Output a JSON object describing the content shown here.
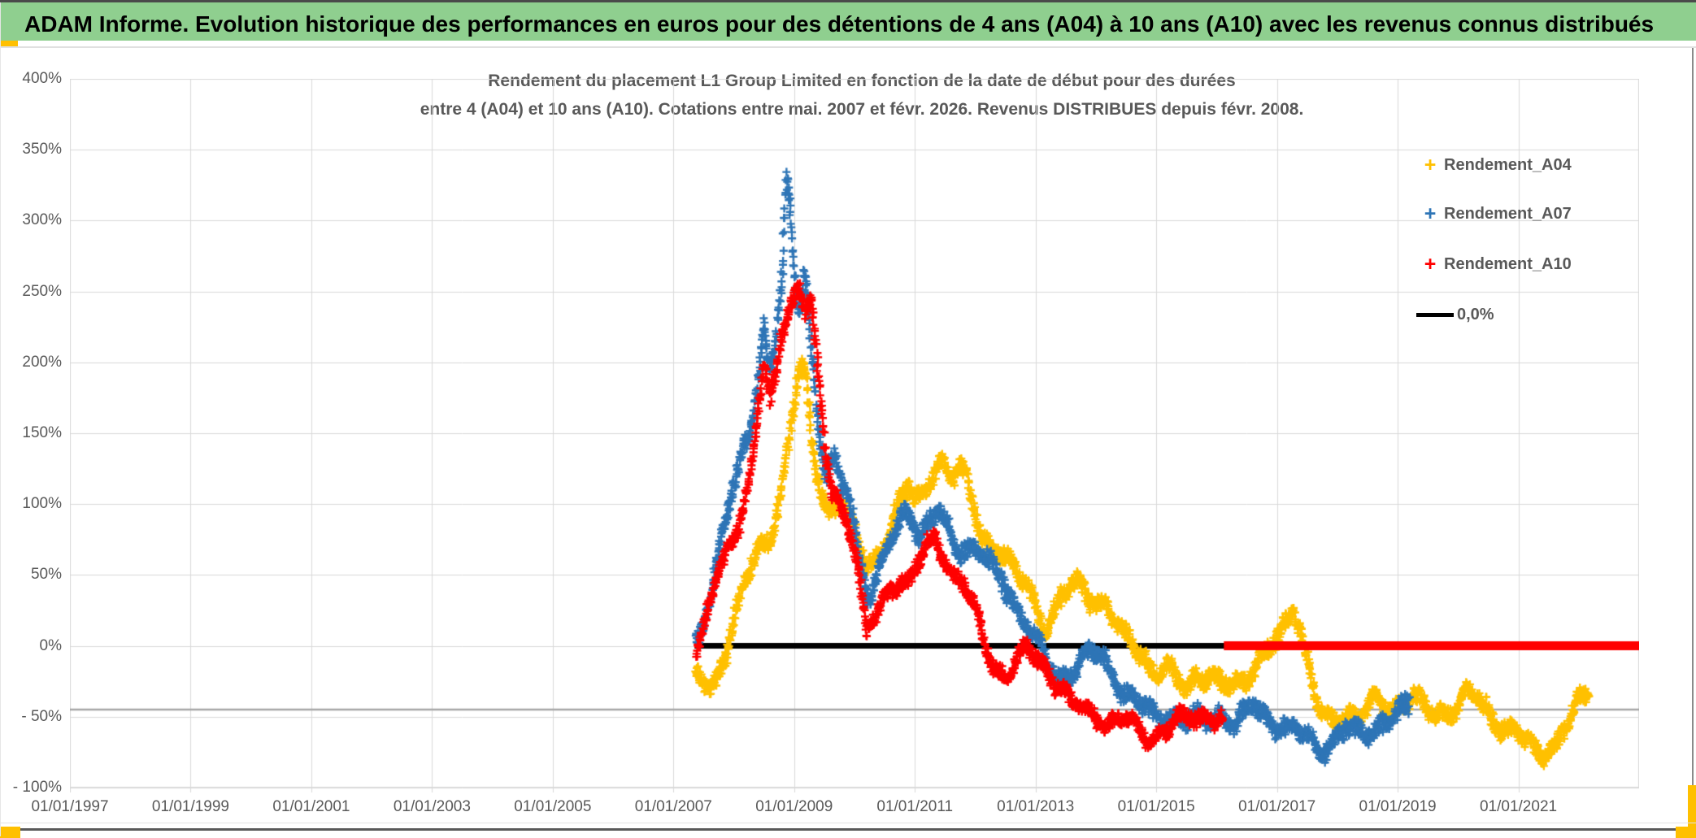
{
  "header": {
    "title": "ADAM Informe. Evolution historique des performances en euros pour des détentions de 4 ans (A04) à 10 ans (A10) avec les revenus connus distribués"
  },
  "chart_data": {
    "type": "scatter",
    "title_line1": "Rendement du placement L1 Group Limited en fonction de la date de début pour des durées",
    "title_line2": "entre 4 (A04) et 10 ans (A10). Cotations entre mai. 2007 et févr. 2026. Revenus DISTRIBUES depuis févr. 2008.",
    "grid": true,
    "grid_color": "#D9D9D9",
    "text_color": "#595959",
    "x_axis": {
      "start_year": 1997,
      "end_year": 2023,
      "tick_step_years": 2,
      "labels": [
        {
          "t": 1997,
          "text": "01/01/1997"
        },
        {
          "t": 1999,
          "text": "01/01/1999"
        },
        {
          "t": 2001,
          "text": "01/01/2001"
        },
        {
          "t": 2003,
          "text": "01/01/2003"
        },
        {
          "t": 2005,
          "text": "01/01/2005"
        },
        {
          "t": 2007,
          "text": "01/01/2007"
        },
        {
          "t": 2009,
          "text": "01/01/2009"
        },
        {
          "t": 2011,
          "text": "01/01/2011"
        },
        {
          "t": 2013,
          "text": "01/01/2013"
        },
        {
          "t": 2015,
          "text": "01/01/2015"
        },
        {
          "t": 2017,
          "text": "01/01/2017"
        },
        {
          "t": 2019,
          "text": "01/01/2019"
        },
        {
          "t": 2021,
          "text": "01/01/2021"
        }
      ]
    },
    "y_axis": {
      "min": -100,
      "max": 400,
      "step": 50,
      "unit": "%",
      "labels": [
        {
          "v": 400,
          "text": "400%"
        },
        {
          "v": 350,
          "text": "350%"
        },
        {
          "v": 300,
          "text": "300%"
        },
        {
          "v": 250,
          "text": "250%"
        },
        {
          "v": 200,
          "text": "200%"
        },
        {
          "v": 150,
          "text": "150%"
        },
        {
          "v": 100,
          "text": "100%"
        },
        {
          "v": 50,
          "text": "50%"
        },
        {
          "v": 0,
          "text": "0%"
        },
        {
          "v": -50,
          "text": "- 50%"
        },
        {
          "v": -100,
          "text": "- 100%"
        }
      ]
    },
    "floor_line": {
      "value": -45,
      "color": "#A6A6A6",
      "width": 2.5
    },
    "zero_line": {
      "label": "0,0%",
      "color": "#000000",
      "value": 0,
      "start": 2007.35,
      "end": 2023.0,
      "width": 7
    },
    "red_zero_line": {
      "color": "#FF0000",
      "value": 0,
      "start": 2016.12,
      "end": 2023.0,
      "width": 11
    },
    "marker": "plus",
    "marker_size": 10,
    "series": [
      {
        "name": "Rendement_A04",
        "color": "#FFC000",
        "band": 7,
        "points": [
          [
            2007.37,
            -24
          ],
          [
            2007.5,
            -28
          ],
          [
            2007.62,
            -30
          ],
          [
            2007.75,
            -18
          ],
          [
            2007.85,
            -5
          ],
          [
            2008.0,
            18
          ],
          [
            2008.15,
            38
          ],
          [
            2008.3,
            55
          ],
          [
            2008.45,
            70
          ],
          [
            2008.6,
            78
          ],
          [
            2008.75,
            105
          ],
          [
            2008.9,
            140
          ],
          [
            2009.0,
            170
          ],
          [
            2009.1,
            196
          ],
          [
            2009.2,
            183
          ],
          [
            2009.3,
            140
          ],
          [
            2009.45,
            110
          ],
          [
            2009.6,
            95
          ],
          [
            2009.75,
            105
          ],
          [
            2009.9,
            88
          ],
          [
            2010.05,
            70
          ],
          [
            2010.2,
            57
          ],
          [
            2010.35,
            63
          ],
          [
            2010.5,
            73
          ],
          [
            2010.65,
            88
          ],
          [
            2010.8,
            103
          ],
          [
            2010.9,
            112
          ],
          [
            2011.0,
            100
          ],
          [
            2011.1,
            106
          ],
          [
            2011.25,
            120
          ],
          [
            2011.4,
            132
          ],
          [
            2011.5,
            126
          ],
          [
            2011.6,
            114
          ],
          [
            2011.72,
            124
          ],
          [
            2011.85,
            118
          ],
          [
            2011.95,
            105
          ],
          [
            2012.1,
            82
          ],
          [
            2012.25,
            70
          ],
          [
            2012.4,
            64
          ],
          [
            2012.55,
            58
          ],
          [
            2012.7,
            50
          ],
          [
            2012.85,
            48
          ],
          [
            2013.0,
            32
          ],
          [
            2013.15,
            10
          ],
          [
            2013.3,
            20
          ],
          [
            2013.45,
            32
          ],
          [
            2013.6,
            44
          ],
          [
            2013.72,
            48
          ],
          [
            2013.85,
            40
          ],
          [
            2014.0,
            32
          ],
          [
            2014.15,
            26
          ],
          [
            2014.3,
            16
          ],
          [
            2014.45,
            10
          ],
          [
            2014.6,
            6
          ],
          [
            2014.75,
            -4
          ],
          [
            2014.9,
            -16
          ],
          [
            2015.05,
            -24
          ],
          [
            2015.2,
            -18
          ],
          [
            2015.35,
            -22
          ],
          [
            2015.5,
            -26
          ],
          [
            2015.65,
            -20
          ],
          [
            2015.8,
            -24
          ],
          [
            2015.95,
            -26
          ],
          [
            2016.1,
            -28
          ],
          [
            2016.3,
            -26
          ],
          [
            2016.5,
            -20
          ],
          [
            2016.7,
            -12
          ],
          [
            2016.85,
            -6
          ],
          [
            2017.0,
            4
          ],
          [
            2017.15,
            18
          ],
          [
            2017.28,
            30
          ],
          [
            2017.4,
            12
          ],
          [
            2017.5,
            -12
          ],
          [
            2017.62,
            -35
          ],
          [
            2017.75,
            -50
          ],
          [
            2017.9,
            -55
          ],
          [
            2018.05,
            -48
          ],
          [
            2018.2,
            -44
          ],
          [
            2018.35,
            -50
          ],
          [
            2018.5,
            -45
          ],
          [
            2018.65,
            -38
          ],
          [
            2018.8,
            -45
          ],
          [
            2018.95,
            -42
          ],
          [
            2019.1,
            -38
          ],
          [
            2019.25,
            -36
          ],
          [
            2019.4,
            -44
          ],
          [
            2019.55,
            -50
          ],
          [
            2019.7,
            -46
          ],
          [
            2019.85,
            -44
          ],
          [
            2020.0,
            -40
          ],
          [
            2020.15,
            -33
          ],
          [
            2020.3,
            -38
          ],
          [
            2020.45,
            -46
          ],
          [
            2020.6,
            -52
          ],
          [
            2020.75,
            -55
          ],
          [
            2020.9,
            -58
          ],
          [
            2021.05,
            -64
          ],
          [
            2021.2,
            -72
          ],
          [
            2021.33,
            -77
          ],
          [
            2021.45,
            -74
          ],
          [
            2021.6,
            -68
          ],
          [
            2021.75,
            -58
          ],
          [
            2021.9,
            -48
          ],
          [
            2022.05,
            -40
          ],
          [
            2022.17,
            -33
          ]
        ]
      },
      {
        "name": "Rendement_A07",
        "color": "#2E75B6",
        "band": 7,
        "points": [
          [
            2007.38,
            2
          ],
          [
            2007.5,
            18
          ],
          [
            2007.62,
            42
          ],
          [
            2007.75,
            68
          ],
          [
            2007.88,
            88
          ],
          [
            2008.0,
            112
          ],
          [
            2008.12,
            132
          ],
          [
            2008.25,
            148
          ],
          [
            2008.38,
            185
          ],
          [
            2008.5,
            228
          ],
          [
            2008.6,
            192
          ],
          [
            2008.7,
            220
          ],
          [
            2008.8,
            258
          ],
          [
            2008.88,
            330
          ],
          [
            2008.94,
            300
          ],
          [
            2009.0,
            262
          ],
          [
            2009.08,
            238
          ],
          [
            2009.18,
            268
          ],
          [
            2009.28,
            215
          ],
          [
            2009.4,
            158
          ],
          [
            2009.52,
            122
          ],
          [
            2009.65,
            128
          ],
          [
            2009.78,
            112
          ],
          [
            2009.9,
            108
          ],
          [
            2010.0,
            85
          ],
          [
            2010.12,
            55
          ],
          [
            2010.25,
            35
          ],
          [
            2010.4,
            48
          ],
          [
            2010.55,
            68
          ],
          [
            2010.7,
            82
          ],
          [
            2010.85,
            98
          ],
          [
            2010.95,
            92
          ],
          [
            2011.1,
            78
          ],
          [
            2011.25,
            88
          ],
          [
            2011.4,
            94
          ],
          [
            2011.55,
            80
          ],
          [
            2011.7,
            70
          ],
          [
            2011.85,
            72
          ],
          [
            2012.0,
            70
          ],
          [
            2012.15,
            62
          ],
          [
            2012.3,
            52
          ],
          [
            2012.45,
            45
          ],
          [
            2012.6,
            36
          ],
          [
            2012.75,
            24
          ],
          [
            2012.9,
            12
          ],
          [
            2013.05,
            0
          ],
          [
            2013.2,
            -15
          ],
          [
            2013.35,
            -24
          ],
          [
            2013.5,
            -20
          ],
          [
            2013.65,
            -14
          ],
          [
            2013.8,
            -8
          ],
          [
            2013.95,
            -6
          ],
          [
            2014.1,
            -10
          ],
          [
            2014.25,
            -18
          ],
          [
            2014.4,
            -27
          ],
          [
            2014.55,
            -34
          ],
          [
            2014.7,
            -40
          ],
          [
            2014.85,
            -47
          ],
          [
            2015.0,
            -53
          ],
          [
            2015.15,
            -50
          ],
          [
            2015.3,
            -47
          ],
          [
            2015.45,
            -50
          ],
          [
            2015.6,
            -52
          ],
          [
            2015.75,
            -55
          ],
          [
            2015.9,
            -52
          ],
          [
            2016.05,
            -48
          ],
          [
            2016.2,
            -50
          ],
          [
            2016.35,
            -52
          ],
          [
            2016.5,
            -48
          ],
          [
            2016.65,
            -45
          ],
          [
            2016.8,
            -50
          ],
          [
            2016.95,
            -52
          ],
          [
            2017.1,
            -55
          ],
          [
            2017.25,
            -58
          ],
          [
            2017.4,
            -63
          ],
          [
            2017.55,
            -68
          ],
          [
            2017.7,
            -74
          ],
          [
            2017.85,
            -68
          ],
          [
            2018.0,
            -62
          ],
          [
            2018.15,
            -58
          ],
          [
            2018.3,
            -63
          ],
          [
            2018.45,
            -65
          ],
          [
            2018.6,
            -58
          ],
          [
            2018.75,
            -52
          ],
          [
            2018.9,
            -50
          ],
          [
            2019.05,
            -47
          ],
          [
            2019.2,
            -45
          ]
        ]
      },
      {
        "name": "Rendement_A10",
        "color": "#FF0000",
        "band": 6,
        "points": [
          [
            2007.38,
            -3
          ],
          [
            2007.5,
            10
          ],
          [
            2007.62,
            30
          ],
          [
            2007.75,
            50
          ],
          [
            2007.88,
            65
          ],
          [
            2008.0,
            80
          ],
          [
            2008.12,
            95
          ],
          [
            2008.25,
            115
          ],
          [
            2008.38,
            155
          ],
          [
            2008.5,
            200
          ],
          [
            2008.6,
            168
          ],
          [
            2008.7,
            190
          ],
          [
            2008.8,
            225
          ],
          [
            2008.9,
            238
          ],
          [
            2009.0,
            248
          ],
          [
            2009.08,
            255
          ],
          [
            2009.18,
            238
          ],
          [
            2009.28,
            242
          ],
          [
            2009.38,
            195
          ],
          [
            2009.5,
            140
          ],
          [
            2009.62,
            112
          ],
          [
            2009.75,
            102
          ],
          [
            2009.88,
            92
          ],
          [
            2010.0,
            72
          ],
          [
            2010.1,
            40
          ],
          [
            2010.2,
            5
          ],
          [
            2010.3,
            15
          ],
          [
            2010.45,
            30
          ],
          [
            2010.6,
            42
          ],
          [
            2010.75,
            48
          ],
          [
            2010.9,
            44
          ],
          [
            2011.05,
            56
          ],
          [
            2011.2,
            68
          ],
          [
            2011.35,
            76
          ],
          [
            2011.5,
            62
          ],
          [
            2011.65,
            50
          ],
          [
            2011.8,
            45
          ],
          [
            2011.95,
            28
          ],
          [
            2012.1,
            10
          ],
          [
            2012.25,
            -10
          ],
          [
            2012.4,
            -16
          ],
          [
            2012.55,
            -20
          ],
          [
            2012.7,
            -10
          ],
          [
            2012.85,
            -5
          ],
          [
            2013.0,
            -8
          ],
          [
            2013.15,
            -14
          ],
          [
            2013.3,
            -22
          ],
          [
            2013.45,
            -30
          ],
          [
            2013.6,
            -42
          ],
          [
            2013.75,
            -45
          ],
          [
            2013.9,
            -48
          ],
          [
            2014.05,
            -50
          ],
          [
            2014.2,
            -52
          ],
          [
            2014.35,
            -52
          ],
          [
            2014.5,
            -53
          ],
          [
            2014.65,
            -58
          ],
          [
            2014.85,
            -65
          ],
          [
            2015.0,
            -62
          ],
          [
            2015.15,
            -58
          ],
          [
            2015.3,
            -55
          ],
          [
            2015.45,
            -53
          ],
          [
            2015.6,
            -51
          ],
          [
            2015.75,
            -50
          ],
          [
            2015.9,
            -48
          ],
          [
            2016.0,
            -50
          ],
          [
            2016.1,
            -51
          ]
        ]
      }
    ],
    "legend": {
      "position": "right",
      "items": [
        "Rendement_A04",
        "Rendement_A07",
        "Rendement_A10",
        "0,0%"
      ]
    }
  }
}
